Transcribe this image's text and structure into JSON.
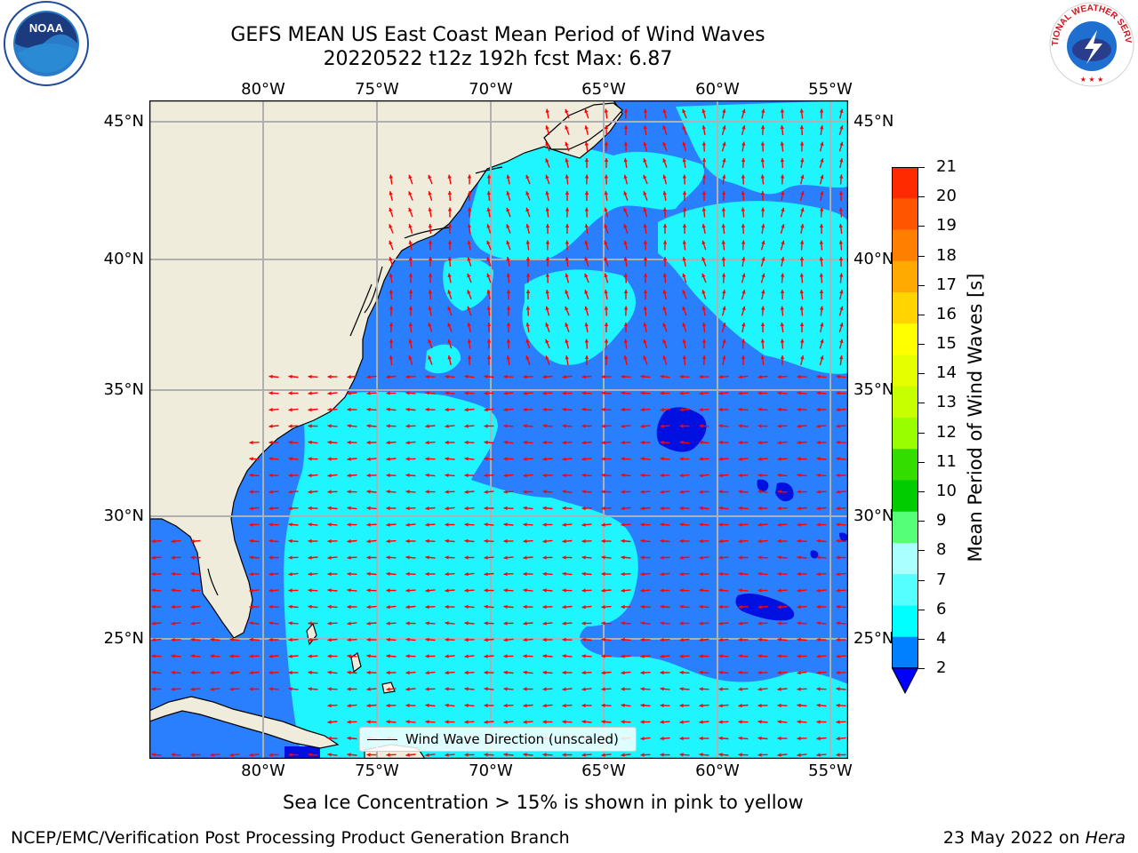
{
  "title_line1": "GEFS MEAN US East Coast Mean Period of Wind Waves",
  "title_line2": "20220522 t12z 192h fcst   Max: 6.87",
  "lon_labels": [
    "80°W",
    "75°W",
    "70°W",
    "65°W",
    "60°W",
    "55°W"
  ],
  "lat_labels": [
    "45°N",
    "40°N",
    "35°N",
    "30°N",
    "25°N"
  ],
  "legend": {
    "label": "Wind Wave Direction (unscaled)"
  },
  "colorbar": {
    "label": "Mean Period of Wind Waves [s]",
    "ticks": [
      "21",
      "20",
      "19",
      "18",
      "17",
      "16",
      "15",
      "14",
      "13",
      "12",
      "11",
      "10",
      "9",
      "8",
      "7",
      "6",
      "4",
      "2"
    ],
    "colors": [
      "#ff0000",
      "#ff2a00",
      "#ff5500",
      "#ff8000",
      "#ffaa00",
      "#ffd400",
      "#ffff00",
      "#e6ff00",
      "#c8ff00",
      "#99ff00",
      "#33dd00",
      "#00cc00",
      "#55ff77",
      "#aaffff",
      "#55ffff",
      "#00ffff",
      "#0080ff",
      "#0000ff"
    ]
  },
  "map_colors": {
    "land": "#efecdc",
    "deep": "#2a7fff",
    "shallow": "#1ff5ff",
    "core": "#0010e0",
    "arrow": "#ff0000",
    "grid": "#b0b0b0"
  },
  "sea_ice_note": "Sea Ice Concentration > 15% is shown in pink to yellow",
  "footer_left": "NCEP/EMC/Verification Post Processing Product Generation Branch",
  "footer_date": "23 May 2022 on ",
  "footer_machine": "Hera",
  "logos": {
    "left": "NOAA",
    "right_text": "NATIONAL WEATHER SERVICE"
  }
}
